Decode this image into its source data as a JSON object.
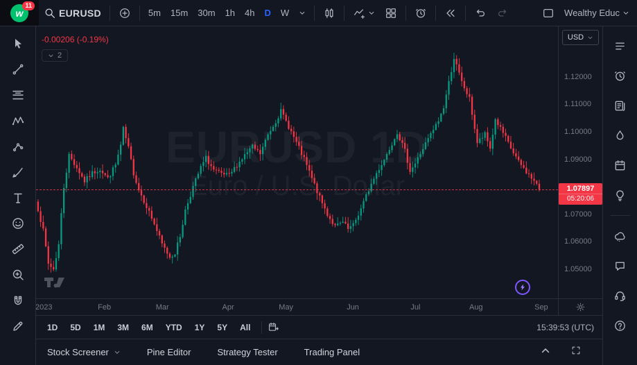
{
  "header": {
    "logo_letter": "w",
    "logo_badge": "11",
    "symbol": "EURUSD",
    "timeframes": [
      "5m",
      "15m",
      "30m",
      "1h",
      "4h",
      "D",
      "W"
    ],
    "active_timeframe": "D",
    "account_label": "Wealthy Educ"
  },
  "left_toolbar": {
    "tools": [
      {
        "name": "cursor"
      },
      {
        "name": "trend-line"
      },
      {
        "name": "fib-retracement"
      },
      {
        "name": "xabcd-pattern"
      },
      {
        "name": "forecast"
      },
      {
        "name": "brush"
      },
      {
        "name": "text"
      },
      {
        "name": "emoji"
      },
      {
        "name": "ruler"
      },
      {
        "name": "zoom"
      },
      {
        "name": "magnet"
      },
      {
        "name": "draw"
      }
    ]
  },
  "right_sidebar": {
    "items": [
      {
        "name": "watchlist"
      },
      {
        "name": "alerts"
      },
      {
        "name": "news"
      },
      {
        "name": "hotlists"
      },
      {
        "name": "calendar"
      },
      {
        "name": "ideas"
      },
      {
        "name": "minds",
        "divider_before": true
      },
      {
        "name": "chat"
      },
      {
        "name": "support"
      },
      {
        "name": "help"
      }
    ]
  },
  "chart": {
    "change_text": "-0.00206 (-0.19%)",
    "legend_collapsed_count": "2",
    "watermark_title": "EURUSD 1D",
    "watermark_subtitle": "Euro / U.S. Dollar",
    "currency_button": "USD",
    "last_price": "1.07897",
    "countdown": "05:20:06",
    "price_ticks": [
      {
        "label": "1.12000",
        "value": 1.12
      },
      {
        "label": "1.11000",
        "value": 1.11
      },
      {
        "label": "1.10000",
        "value": 1.1
      },
      {
        "label": "1.09000",
        "value": 1.09
      },
      {
        "label": "1.07000",
        "value": 1.07
      },
      {
        "label": "1.06000",
        "value": 1.06
      },
      {
        "label": "1.05000",
        "value": 1.05
      }
    ],
    "time_ticks": [
      {
        "label": "2023",
        "f": 0.015
      },
      {
        "label": "Feb",
        "f": 0.131
      },
      {
        "label": "Mar",
        "f": 0.242
      },
      {
        "label": "Apr",
        "f": 0.368
      },
      {
        "label": "May",
        "f": 0.479
      },
      {
        "label": "Jun",
        "f": 0.607
      },
      {
        "label": "Jul",
        "f": 0.727
      },
      {
        "label": "Aug",
        "f": 0.843
      },
      {
        "label": "Sep",
        "f": 0.968
      }
    ],
    "colors": {
      "up": "#089981",
      "down": "#f23645",
      "accent": "#2962ff",
      "last_price": "#f23645"
    }
  },
  "chart_data": {
    "type": "candlestick",
    "symbol": "EURUSD",
    "interval": "1D",
    "price_range_visible": [
      1.0394,
      1.1384
    ],
    "num_candles": 195,
    "last_close": 1.07897,
    "close_anchors": [
      [
        0,
        1.072
      ],
      [
        2,
        1.064
      ],
      [
        4,
        1.052
      ],
      [
        6,
        1.05
      ],
      [
        8,
        1.059
      ],
      [
        9,
        1.07
      ],
      [
        10,
        1.08
      ],
      [
        12,
        1.0915
      ],
      [
        15,
        1.087
      ],
      [
        18,
        1.082
      ],
      [
        21,
        1.085
      ],
      [
        24,
        1.0865
      ],
      [
        27,
        1.083
      ],
      [
        30,
        1.088
      ],
      [
        32,
        1.095
      ],
      [
        33,
        1.101
      ],
      [
        35,
        1.094
      ],
      [
        37,
        1.085
      ],
      [
        39,
        1.079
      ],
      [
        42,
        1.073
      ],
      [
        45,
        1.0665
      ],
      [
        48,
        1.059
      ],
      [
        51,
        1.0545
      ],
      [
        53,
        1.056
      ],
      [
        55,
        1.062
      ],
      [
        57,
        1.0715
      ],
      [
        60,
        1.08
      ],
      [
        63,
        1.087
      ],
      [
        65,
        1.0905
      ],
      [
        68,
        1.086
      ],
      [
        71,
        1.0845
      ],
      [
        74,
        1.084
      ],
      [
        77,
        1.088
      ],
      [
        80,
        1.0915
      ],
      [
        83,
        1.0945
      ],
      [
        86,
        1.092
      ],
      [
        89,
        1.099
      ],
      [
        92,
        1.104
      ],
      [
        94,
        1.1075
      ],
      [
        97,
        1.102
      ],
      [
        100,
        1.096
      ],
      [
        103,
        1.09
      ],
      [
        106,
        1.083
      ],
      [
        109,
        1.076
      ],
      [
        112,
        1.07
      ],
      [
        115,
        1.0655
      ],
      [
        118,
        1.067
      ],
      [
        120,
        1.0645
      ],
      [
        122,
        1.066
      ],
      [
        125,
        1.072
      ],
      [
        128,
        1.079
      ],
      [
        131,
        1.085
      ],
      [
        134,
        1.09
      ],
      [
        137,
        1.096
      ],
      [
        139,
        1.1
      ],
      [
        142,
        1.093
      ],
      [
        144,
        1.086
      ],
      [
        146,
        1.0885
      ],
      [
        149,
        1.094
      ],
      [
        152,
        1.099
      ],
      [
        155,
        1.104
      ],
      [
        157,
        1.109
      ],
      [
        159,
        1.118
      ],
      [
        161,
        1.127
      ],
      [
        164,
        1.118
      ],
      [
        167,
        1.112
      ],
      [
        170,
        1.096
      ],
      [
        173,
        1.099
      ],
      [
        175,
        1.094
      ],
      [
        177,
        1.1045
      ],
      [
        180,
        1.0995
      ],
      [
        183,
        1.094
      ],
      [
        186,
        1.089
      ],
      [
        189,
        1.0855
      ],
      [
        192,
        1.082
      ],
      [
        194,
        1.07897
      ]
    ]
  },
  "bottom_bar": {
    "ranges": [
      "1D",
      "5D",
      "1M",
      "3M",
      "6M",
      "YTD",
      "1Y",
      "5Y",
      "All"
    ],
    "clock": "15:39:53 (UTC)"
  },
  "footer": {
    "tabs": [
      {
        "label": "Stock Screener",
        "has_chevron": true
      },
      {
        "label": "Pine Editor"
      },
      {
        "label": "Strategy Tester"
      },
      {
        "label": "Trading Panel"
      }
    ]
  }
}
